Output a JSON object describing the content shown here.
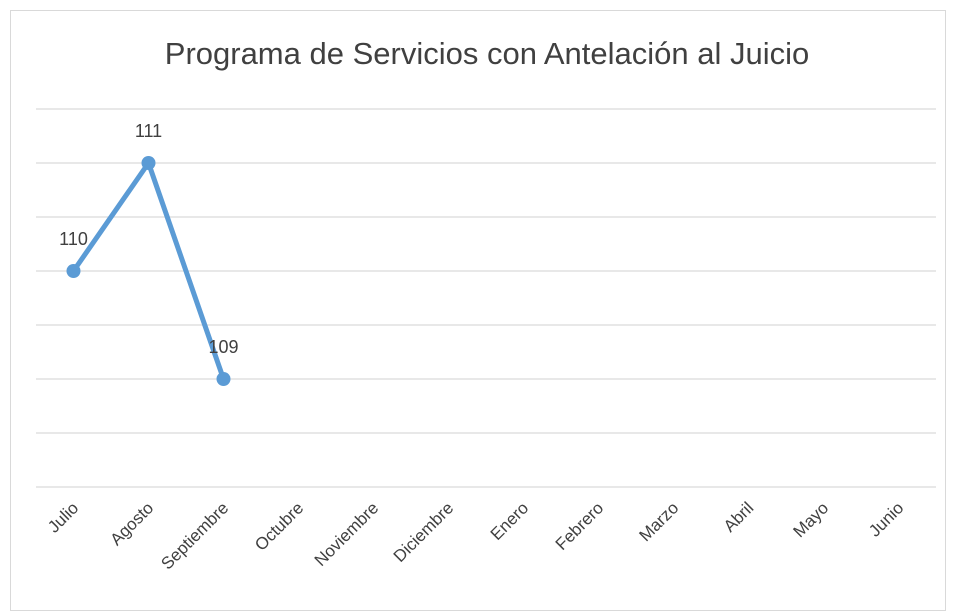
{
  "chart_data": {
    "type": "line",
    "title": "Programa de Servicios con Antelación al Juicio",
    "categories": [
      "Julio",
      "Agosto",
      "Septiembre",
      "Octubre",
      "Noviembre",
      "Diciembre",
      "Enero",
      "Febrero",
      "Marzo",
      "Abril",
      "Mayo",
      "Junio"
    ],
    "series": [
      {
        "name": "Programa de Servicios con Antelación al Juicio",
        "color": "#5b9bd5",
        "values": [
          110,
          111,
          109,
          null,
          null,
          null,
          null,
          null,
          null,
          null,
          null,
          null
        ]
      }
    ],
    "ylim": [
      108,
      111.5
    ],
    "yticks": [
      108,
      108.5,
      109,
      109.5,
      110,
      110.5,
      111,
      111.5
    ],
    "grid": true
  }
}
